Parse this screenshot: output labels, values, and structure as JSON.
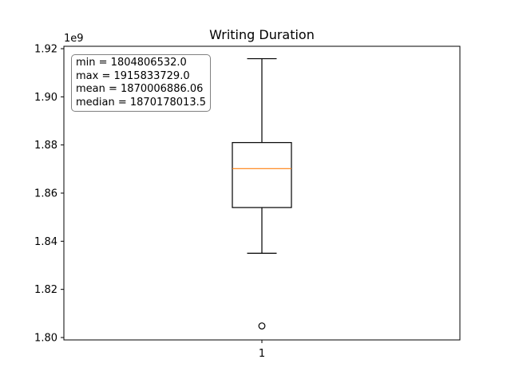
{
  "chart_data": {
    "type": "box",
    "title": "Writing Duration",
    "categories": [
      "1"
    ],
    "offset_label": "1e9",
    "y_ticks": [
      "1.80",
      "1.82",
      "1.84",
      "1.86",
      "1.88",
      "1.90",
      "1.92"
    ],
    "y_tick_values": [
      1800000000,
      1820000000,
      1840000000,
      1860000000,
      1880000000,
      1900000000,
      1920000000
    ],
    "ylim": [
      1799000000,
      1921000000
    ],
    "boxes": [
      {
        "label": "1",
        "whisker_low": 1835000000,
        "q1": 1854000000,
        "median": 1870178013.5,
        "q3": 1881000000,
        "whisker_high": 1915833729.0,
        "outliers": [
          1804806532.0
        ]
      }
    ],
    "stats_text": [
      "min = 1804806532.0",
      "max = 1915833729.0",
      "mean = 1870006886.06",
      "median = 1870178013.5"
    ],
    "colors": {
      "median": "#ff7f0e",
      "box": "#000000"
    }
  }
}
